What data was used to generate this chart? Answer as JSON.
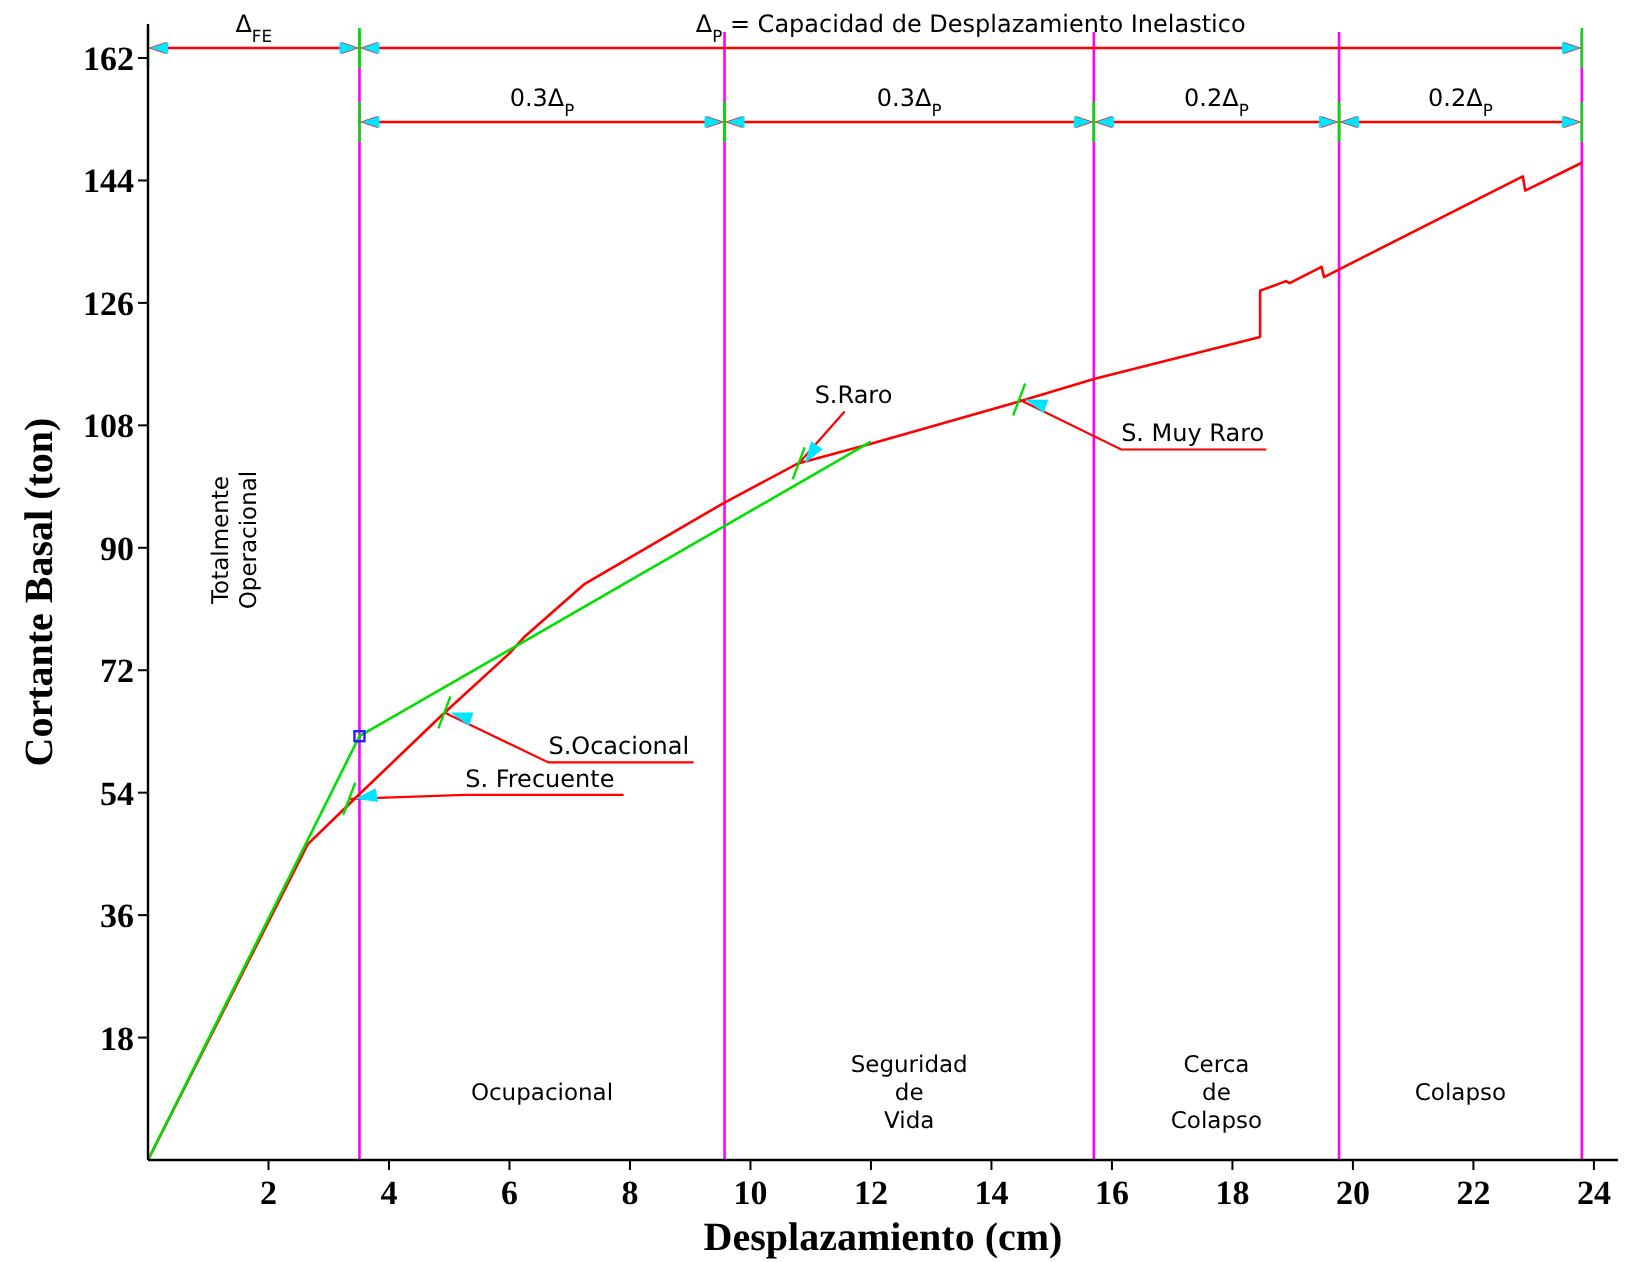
{
  "chart_data": {
    "type": "line",
    "xlabel": "Desplazamiento (cm)",
    "ylabel": "Cortante Basal (ton)",
    "xlim": [
      0,
      24.4
    ],
    "ylim": [
      0,
      167
    ],
    "xticks": [
      2,
      4,
      6,
      8,
      10,
      12,
      14,
      16,
      18,
      20,
      22,
      24
    ],
    "yticks": [
      18,
      36,
      54,
      72,
      90,
      108,
      126,
      144,
      162
    ],
    "grid": false,
    "series": [
      {
        "color": "#ff0000",
        "x": [
          0,
          2.65,
          3.37,
          4.89,
          5.99,
          6.26,
          7.25,
          9.54,
          10.79,
          12,
          14.46,
          15.7,
          18.46,
          18.46,
          18.89,
          18.95,
          19.48,
          19.52,
          22.82,
          22.86,
          23.8
        ],
        "values": [
          0,
          46.4,
          52.6,
          65.5,
          74.4,
          77,
          84.7,
          96.5,
          102.4,
          105.3,
          111.5,
          114.8,
          121,
          127.8,
          129.2,
          128.9,
          131.3,
          129.8,
          144.6,
          142.5,
          146.6
        ]
      },
      {
        "color": "#00e000",
        "x": [
          0,
          3.51,
          12
        ],
        "values": [
          0,
          62.3,
          105.6
        ]
      },
      {
        "type": "scatter",
        "marker": "square",
        "color": "#2020ff",
        "x": [
          3.51
        ],
        "values": [
          62.3
        ]
      }
    ],
    "ref_lines": [
      {
        "axis": "x",
        "value": 3.51,
        "color": "#ff00ff"
      },
      {
        "axis": "x",
        "value": 9.57,
        "color": "#ff00ff"
      },
      {
        "axis": "x",
        "value": 15.7,
        "color": "#ff00ff"
      },
      {
        "axis": "x",
        "value": 19.77,
        "color": "#ff00ff"
      },
      {
        "axis": "x",
        "value": 23.8,
        "color": "#ff00ff"
      }
    ],
    "annotations": [
      "Δ$_{FE}$",
      "Δ$_{P}$ = Capacidad de Desplazamiento Inelastico",
      "0.3Δ$_{P}$",
      "0.3Δ$_{P}$",
      "0.2Δ$_{P}$",
      "0.2Δ$_{P}$",
      "Totalmente\nOperacional",
      "Ocupacional",
      "Seguridad\nde\nVida",
      "Cerca\nde\nColapso",
      "Colapso",
      {
        "text": "S. Frecuente",
        "x": 3.34,
        "y": 53.1
      },
      {
        "text": "S.Ocacional",
        "x": 4.92,
        "y": 65.8
      },
      {
        "text": "S.Raro",
        "x": 10.8,
        "y": 102.4
      },
      {
        "text": "S. Muy Raro",
        "x": 14.46,
        "y": 111.8
      }
    ]
  }
}
